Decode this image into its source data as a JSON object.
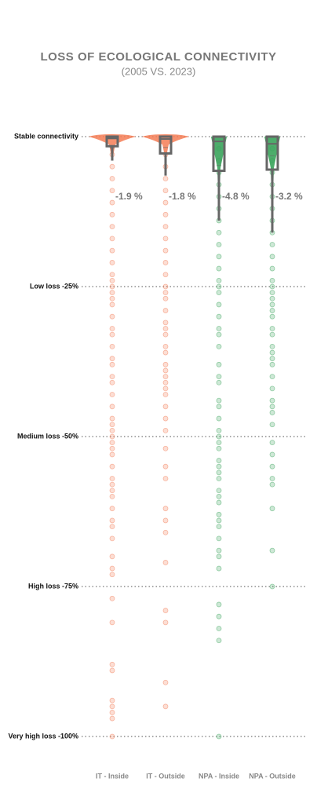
{
  "chart_data": {
    "type": "strip",
    "title": "LOSS OF ECOLOGICAL CONNECTIVITY",
    "subtitle": "(2005 VS. 2023)",
    "categories": [
      "IT - Inside",
      "IT - Outside",
      "NPA - Inside",
      "NPA - Outside"
    ],
    "ylim": [
      -100,
      0
    ],
    "yticks": [
      {
        "value": 0,
        "label": "Stable connectivity"
      },
      {
        "value": -25,
        "label": "Low loss -25%"
      },
      {
        "value": -50,
        "label": "Medium loss -50%"
      },
      {
        "value": -75,
        "label": "High loss -75%"
      },
      {
        "value": -100,
        "label": "Very high loss -100%"
      }
    ],
    "groups": [
      {
        "color": "#f47c55",
        "means": -1.9,
        "mean_label": "-1.9 %",
        "box": {
          "q3": 0,
          "median": -0.3,
          "q1": -1.6,
          "whisker_low": -4
        },
        "values": [
          -3,
          -5,
          -7,
          -9,
          -11,
          -13,
          -15,
          -17,
          -19,
          -21,
          -23,
          -24,
          -25,
          -26,
          -27,
          -28,
          -30,
          -32,
          -33,
          -35,
          -37,
          -38,
          -40,
          -41,
          -43,
          -45,
          -47,
          -48,
          -49,
          -50,
          -51,
          -52,
          -53,
          -55,
          -57,
          -58,
          -59,
          -60,
          -62,
          -64,
          -65,
          -67,
          -70,
          -72,
          -73,
          -77,
          -81,
          -88,
          -89,
          -94,
          -95,
          -96,
          -97,
          -100
        ]
      },
      {
        "color": "#f47c55",
        "means": -1.8,
        "mean_label": "-1.8 %",
        "box": {
          "q3": 0,
          "median": -0.4,
          "q1": -2.8,
          "whisker_low": -6.5
        },
        "values": [
          -3,
          -5,
          -7,
          -9,
          -11,
          -13,
          -15,
          -17,
          -19,
          -21,
          -23,
          -25,
          -26,
          -27,
          -29,
          -31,
          -32,
          -33,
          -35,
          -36,
          -38,
          -39,
          -40,
          -41,
          -42,
          -43,
          -45,
          -47,
          -49,
          -52,
          -55,
          -57,
          -62,
          -64,
          -66,
          -71,
          -79,
          -81,
          -91,
          -95
        ]
      },
      {
        "color": "#3aa35b",
        "means": -4.8,
        "mean_label": "-4.8 %",
        "box": {
          "q3": 0,
          "median": -0.8,
          "q1": -5.7,
          "whisker_low": -14
        },
        "values": [
          -2,
          -4,
          -6,
          -8,
          -10,
          -12,
          -14,
          -16,
          -18,
          -20,
          -22,
          -24,
          -25,
          -26,
          -28,
          -30,
          -32,
          -33,
          -35,
          -38,
          -40,
          -41,
          -44,
          -45,
          -47,
          -49,
          -50,
          -51,
          -52,
          -54,
          -55,
          -56,
          -57,
          -59,
          -60,
          -61,
          -63,
          -64,
          -65,
          -67,
          -69,
          -70,
          -72,
          -78,
          -80,
          -82,
          -84,
          -100
        ]
      },
      {
        "color": "#3aa35b",
        "means": -3.2,
        "mean_label": "-3.2 %",
        "box": {
          "q3": 0,
          "median": -1.2,
          "q1": -5.5,
          "whisker_low": -16
        },
        "values": [
          -2,
          -4,
          -6,
          -8,
          -10,
          -12,
          -14,
          -16,
          -18,
          -20,
          -22,
          -24,
          -25,
          -26,
          -27,
          -28,
          -29,
          -30,
          -32,
          -33,
          -35,
          -36,
          -37,
          -38,
          -40,
          -42,
          -44,
          -45,
          -46,
          -48,
          -51,
          -53,
          -55,
          -57,
          -58,
          -62,
          -69,
          -75
        ]
      }
    ]
  }
}
